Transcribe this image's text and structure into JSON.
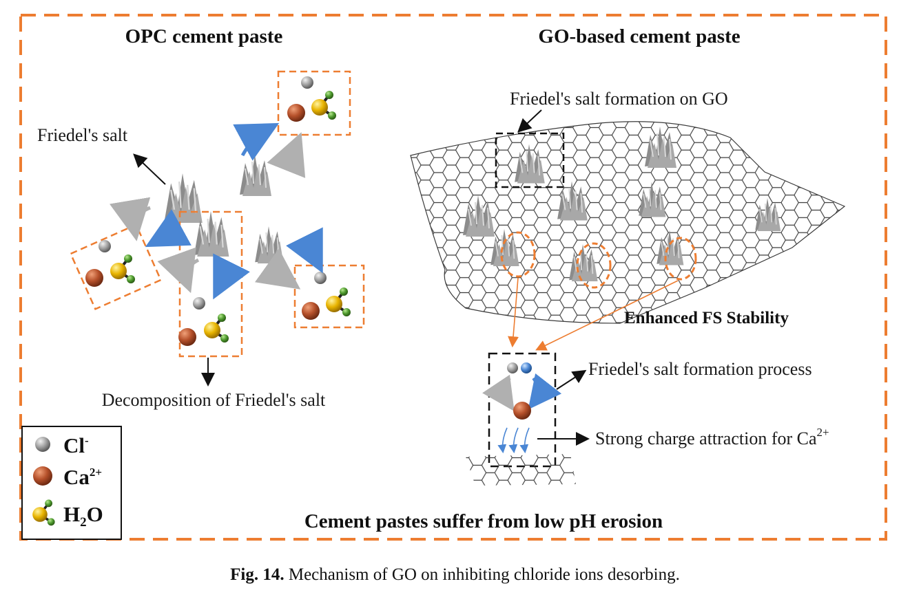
{
  "colors": {
    "frame": "#ED7D31",
    "blue_arrow": "#4A86D4",
    "gray_arrow": "#A6A6A6",
    "cl_ion": "#9A9A9A",
    "ca_ion": "#B5502A",
    "oxygen": "#E8B400",
    "hydrogen": "#4E9A2E",
    "salt": "#8C8C8C",
    "sheet": "#444444"
  },
  "panels": {
    "left_title": "OPC cement paste",
    "right_title": "GO-based cement paste",
    "bottom_title": "Cement pastes suffer from low pH erosion"
  },
  "labels": {
    "friedels_salt": "Friedel's salt",
    "decomposition": "Decomposition of Friedel's salt",
    "formation_on_go": "Friedel's salt formation on GO",
    "enhanced_fs": "Enhanced FS Stability",
    "formation_process": "Friedel's salt formation process",
    "charge_attraction": "Strong charge attraction for Ca",
    "charge_attraction_sup": "2+"
  },
  "legend": [
    {
      "symbol": "cl-icon",
      "text": "Cl",
      "sup": "-",
      "sub": ""
    },
    {
      "symbol": "ca-icon",
      "text": "Ca",
      "sup": "2+",
      "sub": ""
    },
    {
      "symbol": "h2o-icon",
      "text": "H",
      "sub": "2",
      "tail": "O",
      "sup": ""
    }
  ],
  "caption": {
    "fig": "Fig. 14.",
    "text": "Mechanism of GO on inhibiting chloride ions desorbing."
  }
}
